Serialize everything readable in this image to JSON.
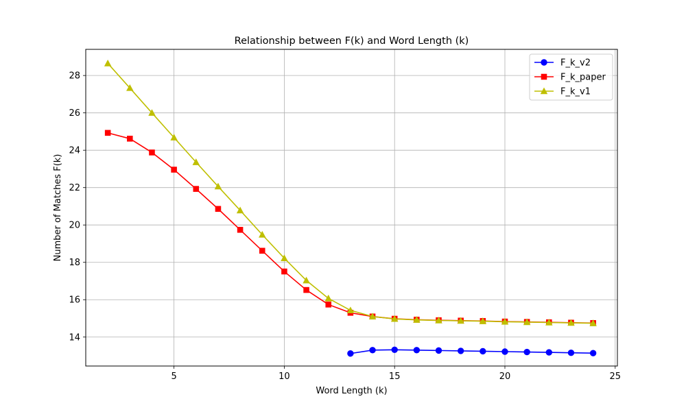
{
  "chart_data": {
    "type": "line",
    "title": "Relationship between F(k) and Word Length (k)",
    "xlabel": "Word Length (k)",
    "ylabel": "Number of Matches F(k)",
    "xlim": [
      1.0,
      25.1
    ],
    "ylim": [
      12.45,
      29.4
    ],
    "xticks": [
      5,
      10,
      15,
      20,
      25
    ],
    "yticks": [
      14,
      16,
      18,
      20,
      22,
      24,
      26,
      28
    ],
    "grid": true,
    "legend_position": "top-right",
    "series": [
      {
        "name": "F_k_v2",
        "color": "#0000ff",
        "marker": "circle",
        "x": [
          13,
          14,
          15,
          16,
          17,
          18,
          19,
          20,
          21,
          22,
          23,
          24
        ],
        "y": [
          13.12,
          13.3,
          13.32,
          13.3,
          13.28,
          13.26,
          13.24,
          13.22,
          13.2,
          13.18,
          13.16,
          13.14
        ]
      },
      {
        "name": "F_k_paper",
        "color": "#ff0000",
        "marker": "square",
        "x": [
          2,
          3,
          4,
          5,
          6,
          7,
          8,
          9,
          10,
          11,
          12,
          13,
          14,
          15,
          16,
          17,
          18,
          19,
          20,
          21,
          22,
          23,
          24
        ],
        "y": [
          24.93,
          24.62,
          23.88,
          22.96,
          21.93,
          20.86,
          19.74,
          18.62,
          17.51,
          16.52,
          15.74,
          15.3,
          15.1,
          14.98,
          14.93,
          14.9,
          14.88,
          14.86,
          14.83,
          14.81,
          14.79,
          14.77,
          14.75
        ]
      },
      {
        "name": "F_k_v1",
        "color": "#bfbf00",
        "marker": "triangle",
        "x": [
          2,
          3,
          4,
          5,
          6,
          7,
          8,
          9,
          10,
          11,
          12,
          13,
          14,
          15,
          16,
          17,
          18,
          19,
          20,
          21,
          22,
          23,
          24
        ],
        "y": [
          28.65,
          27.33,
          26.0,
          24.68,
          23.36,
          22.06,
          20.78,
          19.48,
          18.22,
          17.03,
          16.07,
          15.43,
          15.1,
          14.97,
          14.92,
          14.89,
          14.87,
          14.85,
          14.82,
          14.8,
          14.78,
          14.76,
          14.74
        ]
      }
    ]
  }
}
